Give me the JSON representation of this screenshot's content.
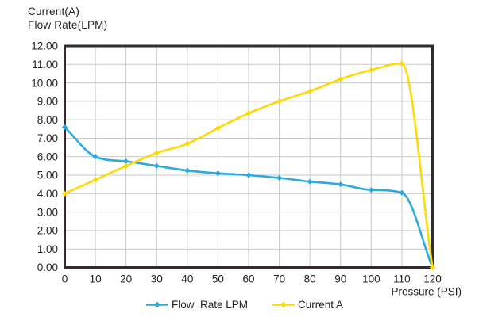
{
  "chart_data": {
    "type": "line",
    "ylabel_lines": [
      "Current(A)",
      "Flow Rate(LPM)"
    ],
    "xlabel": "Pressure (PSI)",
    "x": [
      0,
      10,
      20,
      30,
      40,
      50,
      60,
      70,
      80,
      90,
      100,
      110,
      120
    ],
    "x_tick_labels": [
      "0",
      "10",
      "20",
      "30",
      "40",
      "50",
      "60",
      "70",
      "80",
      "90",
      "100",
      "110",
      "120"
    ],
    "y_tick_labels": [
      "0.00",
      "1.00",
      "2.00",
      "3.00",
      "4.00",
      "5.00",
      "6.00",
      "7.00",
      "8.00",
      "9.00",
      "10.00",
      "11.00",
      "12.00"
    ],
    "xlim": [
      0,
      120
    ],
    "ylim": [
      0,
      12
    ],
    "grid": true,
    "legend_position": "bottom",
    "series": [
      {
        "name": "Flow  Rate LPM",
        "color": "#2BA9E0",
        "values": [
          7.6,
          6.0,
          5.75,
          5.5,
          5.25,
          5.1,
          5.0,
          4.85,
          4.65,
          4.5,
          4.2,
          4.05,
          0.0
        ]
      },
      {
        "name": "Current A",
        "color": "#FFD808",
        "values": [
          4.0,
          4.75,
          5.5,
          6.2,
          6.7,
          7.55,
          8.35,
          9.0,
          9.55,
          10.2,
          10.7,
          11.05,
          0.0
        ]
      }
    ]
  },
  "colors": {
    "background": "#ffffff",
    "grid": "#c9c9c9",
    "frame": "#332b2d",
    "text": "#272123"
  }
}
